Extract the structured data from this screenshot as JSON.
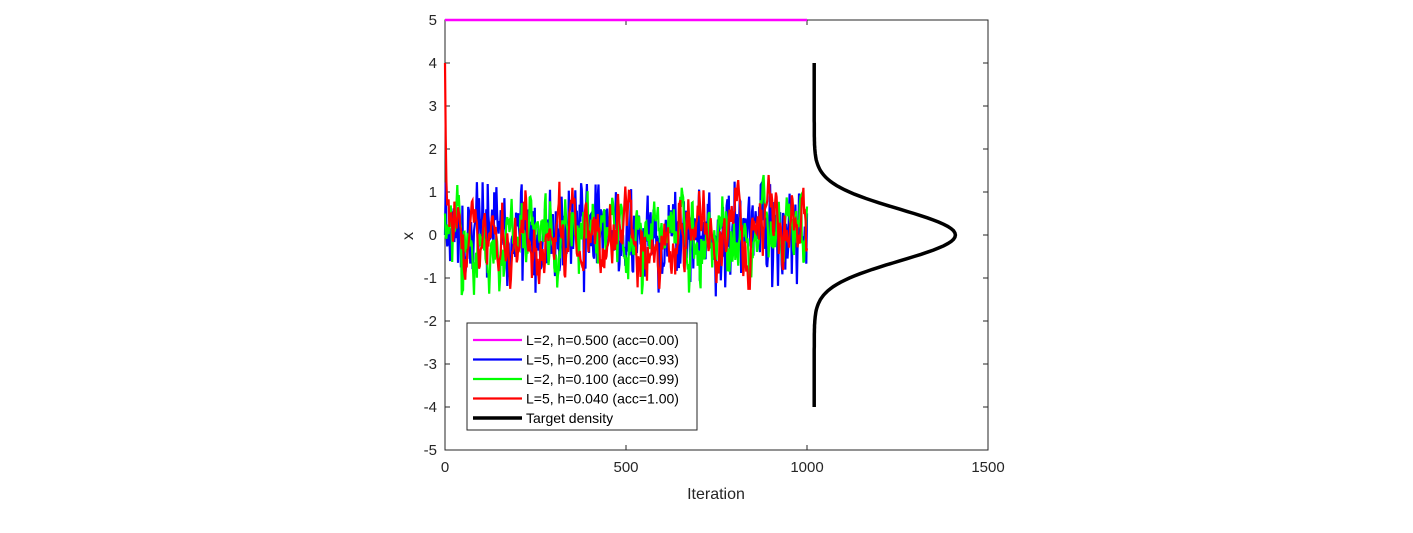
{
  "chart_data": {
    "type": "line",
    "title": "",
    "xlabel": "Iteration",
    "ylabel": "x",
    "xlim": [
      0,
      1500
    ],
    "ylim": [
      -5,
      5
    ],
    "xticks": [
      0,
      500,
      1000,
      1500
    ],
    "yticks": [
      -5,
      -4,
      -3,
      -2,
      -1,
      0,
      1,
      2,
      3,
      4,
      5
    ],
    "grid": false,
    "legend_position": "lower left",
    "series": [
      {
        "name": "L=2, h=0.500 (acc=0.00)",
        "color": "#ff00ff",
        "description": "constant at x=5 for iterations 0-1000",
        "values": {
          "x": [
            0,
            1000
          ],
          "y": [
            5,
            5
          ]
        }
      },
      {
        "name": "L=5, h=0.200 (acc=0.93)",
        "color": "#0000ff",
        "description": "noisy trace around 0, range approx -1.5 to 1.2, iterations 0-1000"
      },
      {
        "name": "L=2, h=0.100 (acc=0.99)",
        "color": "#00ff00",
        "description": "noisy trace around 0, range approx -1.4 to 1.4, iterations 0-1000"
      },
      {
        "name": "L=5, h=0.040 (acc=1.00)",
        "color": "#ff0000",
        "description": "starts at x=4, rapidly drops to ~0, noisy range approx -1.3 to 1.6, iterations 0-1000"
      },
      {
        "name": "Target density",
        "color": "#000000",
        "description": "Gaussian density drawn vertically from x=-4 to 4, baseline at iteration ~1020, peak at ~1410 at x=0"
      }
    ]
  },
  "legend": [
    {
      "label": "L=2, h=0.500 (acc=0.00)",
      "color": "#ff00ff"
    },
    {
      "label": "L=5, h=0.200 (acc=0.93)",
      "color": "#0000ff"
    },
    {
      "label": "L=2, h=0.100 (acc=0.99)",
      "color": "#00ff00"
    },
    {
      "label": "L=5, h=0.040 (acc=1.00)",
      "color": "#ff0000"
    },
    {
      "label": "Target density",
      "color": "#000000"
    }
  ],
  "axes": {
    "xlabel": "Iteration",
    "ylabel": "x",
    "xticks": [
      "0",
      "500",
      "1000",
      "1500"
    ],
    "yticks": [
      "5",
      "4",
      "3",
      "2",
      "1",
      "0",
      "-1",
      "-2",
      "-3",
      "-4",
      "-5"
    ]
  }
}
